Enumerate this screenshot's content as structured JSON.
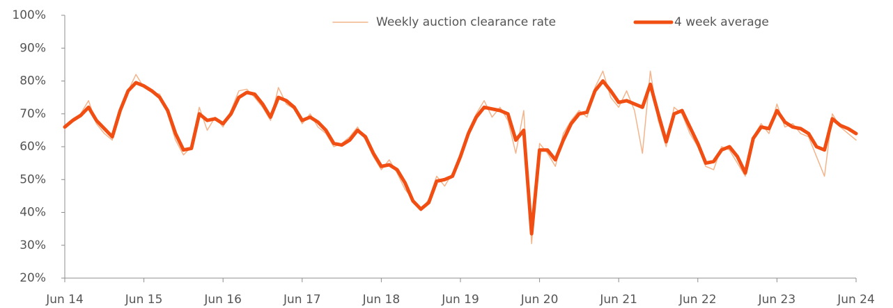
{
  "chart_data": {
    "type": "line",
    "x": [
      2014.45,
      2014.55,
      2014.65,
      2014.75,
      2014.85,
      2014.95,
      2015.05,
      2015.15,
      2015.25,
      2015.35,
      2015.45,
      2015.55,
      2015.65,
      2015.75,
      2015.85,
      2015.95,
      2016.05,
      2016.15,
      2016.25,
      2016.35,
      2016.45,
      2016.55,
      2016.65,
      2016.75,
      2016.85,
      2016.95,
      2017.05,
      2017.15,
      2017.25,
      2017.35,
      2017.45,
      2017.55,
      2017.65,
      2017.75,
      2017.85,
      2017.95,
      2018.05,
      2018.15,
      2018.25,
      2018.35,
      2018.45,
      2018.55,
      2018.65,
      2018.75,
      2018.85,
      2018.95,
      2019.05,
      2019.15,
      2019.25,
      2019.35,
      2019.45,
      2019.55,
      2019.65,
      2019.75,
      2019.85,
      2019.95,
      2020.05,
      2020.15,
      2020.25,
      2020.35,
      2020.45,
      2020.55,
      2020.65,
      2020.75,
      2020.85,
      2020.95,
      2021.05,
      2021.15,
      2021.25,
      2021.35,
      2021.45,
      2021.55,
      2021.65,
      2021.75,
      2021.85,
      2021.95,
      2022.05,
      2022.15,
      2022.25,
      2022.35,
      2022.45,
      2022.55,
      2022.65,
      2022.75,
      2022.85,
      2022.95,
      2023.05,
      2023.15,
      2023.25,
      2023.35,
      2023.45,
      2023.55,
      2023.65,
      2023.75,
      2023.85,
      2023.95,
      2024.05,
      2024.15,
      2024.25,
      2024.35,
      2024.45
    ],
    "series": [
      {
        "name": "Weekly auction clearance rate",
        "color": "#f3b48b",
        "values": [
          65.5,
          68.5,
          70,
          74,
          67,
          64,
          62,
          72,
          77,
          82,
          78,
          76.5,
          76,
          70,
          62,
          57.5,
          60,
          72,
          65,
          69,
          66,
          71,
          77,
          77.5,
          75,
          72,
          68,
          78,
          73,
          71.5,
          67,
          70,
          66,
          64,
          60,
          61,
          63,
          66,
          62,
          57,
          53,
          56,
          52,
          47,
          44,
          40.5,
          44,
          51,
          48,
          52,
          56,
          65,
          70,
          74,
          69,
          72,
          68,
          58,
          71,
          30.5,
          61,
          58,
          54,
          64,
          68,
          71,
          69,
          78,
          83,
          75,
          72,
          77,
          71,
          58,
          83,
          68,
          60,
          72,
          70,
          64,
          60,
          54,
          53,
          60,
          59,
          55,
          51,
          63,
          67,
          64,
          73,
          66,
          67,
          64,
          63,
          57,
          51,
          70,
          66,
          64,
          62
        ]
      },
      {
        "name": "4 week average",
        "color": "#f04e12",
        "values": [
          66,
          68,
          69.5,
          72,
          68,
          65.5,
          63,
          71,
          77,
          79.5,
          78.5,
          77,
          75,
          71,
          64,
          59,
          59.5,
          70,
          68,
          68.5,
          67,
          70,
          75,
          76.5,
          76,
          73,
          69,
          75,
          74,
          72,
          68,
          69,
          67.5,
          65,
          61,
          60.5,
          62,
          65,
          63,
          58,
          54,
          54.5,
          53,
          49,
          43.5,
          41,
          43,
          49.5,
          50,
          51,
          57,
          64,
          69,
          72,
          71.5,
          71,
          70,
          62,
          65,
          33.5,
          59,
          59,
          56,
          62,
          67,
          70,
          70.5,
          77,
          80,
          77,
          73.5,
          74,
          73,
          72,
          79,
          70,
          61.5,
          70,
          71,
          66,
          61,
          55,
          55.5,
          59,
          60,
          57,
          52,
          62.5,
          66,
          65.5,
          71,
          67.5,
          66,
          65.5,
          64,
          60,
          59,
          68.5,
          66.5,
          65.5,
          64
        ]
      }
    ],
    "xlim": [
      2014.45,
      2024.45
    ],
    "xticks": [
      {
        "value": 2014.45,
        "label": "Jun 14"
      },
      {
        "value": 2015.45,
        "label": "Jun 15"
      },
      {
        "value": 2016.45,
        "label": "Jun 16"
      },
      {
        "value": 2017.45,
        "label": "Jun 17"
      },
      {
        "value": 2018.45,
        "label": "Jun 18"
      },
      {
        "value": 2019.45,
        "label": "Jun 19"
      },
      {
        "value": 2020.45,
        "label": "Jun 20"
      },
      {
        "value": 2021.45,
        "label": "Jun 21"
      },
      {
        "value": 2022.45,
        "label": "Jun 22"
      },
      {
        "value": 2023.45,
        "label": "Jun 23"
      },
      {
        "value": 2024.45,
        "label": "Jun 24"
      }
    ],
    "ylim": [
      20,
      100
    ],
    "yticks": [
      {
        "value": 20,
        "label": "20%"
      },
      {
        "value": 30,
        "label": "30%"
      },
      {
        "value": 40,
        "label": "40%"
      },
      {
        "value": 50,
        "label": "50%"
      },
      {
        "value": 60,
        "label": "60%"
      },
      {
        "value": 70,
        "label": "70%"
      },
      {
        "value": 80,
        "label": "80%"
      },
      {
        "value": 90,
        "label": "90%"
      },
      {
        "value": 100,
        "label": "100%"
      }
    ],
    "grid": false,
    "legend": "top"
  }
}
